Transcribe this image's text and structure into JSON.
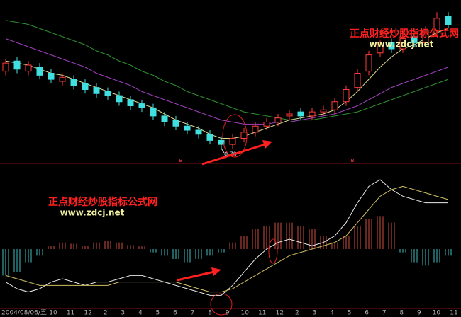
{
  "chart_data": [
    {
      "type": "candlestick",
      "open": [
        1.17,
        1.22,
        1.17,
        1.19,
        1.16,
        1.12,
        1.13,
        1.11,
        1.09,
        1.07,
        1.05,
        1.03,
        1.01,
        0.99,
        0.95,
        0.93,
        0.9,
        0.88,
        0.86,
        0.83,
        0.81,
        0.84,
        0.87,
        0.9,
        0.92,
        0.95,
        0.97,
        0.95,
        0.97,
        0.98,
        1.02,
        1.09,
        1.17,
        1.26,
        1.31,
        1.28,
        1.34,
        1.31,
        1.37,
        1.44
      ],
      "high": [
        1.23,
        1.24,
        1.22,
        1.21,
        1.18,
        1.16,
        1.15,
        1.13,
        1.11,
        1.09,
        1.07,
        1.05,
        1.03,
        1.01,
        0.97,
        0.95,
        0.92,
        0.9,
        0.88,
        0.85,
        0.86,
        0.89,
        0.92,
        0.94,
        0.96,
        0.98,
        0.99,
        0.99,
        1.0,
        1.04,
        1.1,
        1.18,
        1.27,
        1.32,
        1.33,
        1.35,
        1.36,
        1.39,
        1.46,
        1.46
      ],
      "low": [
        1.15,
        1.16,
        1.15,
        1.13,
        1.11,
        1.1,
        1.08,
        1.06,
        1.04,
        1.03,
        1.0,
        0.98,
        0.97,
        0.93,
        0.9,
        0.88,
        0.86,
        0.84,
        0.81,
        0.79,
        0.79,
        0.82,
        0.85,
        0.88,
        0.9,
        0.93,
        0.93,
        0.93,
        0.95,
        0.96,
        1.0,
        1.07,
        1.15,
        1.24,
        1.26,
        1.26,
        1.29,
        1.29,
        1.35,
        1.38
      ],
      "close": [
        1.21,
        1.18,
        1.2,
        1.15,
        1.13,
        1.14,
        1.1,
        1.08,
        1.06,
        1.05,
        1.02,
        1.0,
        0.99,
        0.95,
        0.92,
        0.9,
        0.88,
        0.86,
        0.83,
        0.81,
        0.84,
        0.87,
        0.9,
        0.92,
        0.94,
        0.96,
        0.95,
        0.97,
        0.98,
        1.02,
        1.08,
        1.16,
        1.25,
        1.3,
        1.28,
        1.33,
        1.31,
        1.37,
        1.43,
        1.4
      ],
      "up_color": "#ff3c3c",
      "down_color": "#40e0e0",
      "series": [
        {
          "color": "#d8d890",
          "values": [
            1.22,
            1.21,
            1.2,
            1.18,
            1.16,
            1.15,
            1.13,
            1.11,
            1.09,
            1.07,
            1.05,
            1.03,
            1.01,
            0.99,
            0.96,
            0.93,
            0.91,
            0.89,
            0.86,
            0.84,
            0.84,
            0.85,
            0.87,
            0.89,
            0.91,
            0.93,
            0.94,
            0.95,
            0.96,
            0.98,
            1.02,
            1.07,
            1.13,
            1.19,
            1.24,
            1.28,
            1.3,
            1.33,
            1.36,
            1.38
          ]
        },
        {
          "color": "#a040c0",
          "values": [
            1.33,
            1.31,
            1.29,
            1.27,
            1.25,
            1.23,
            1.21,
            1.19,
            1.16,
            1.14,
            1.12,
            1.1,
            1.07,
            1.05,
            1.03,
            1.01,
            0.99,
            0.97,
            0.95,
            0.93,
            0.92,
            0.91,
            0.91,
            0.91,
            0.92,
            0.92,
            0.93,
            0.94,
            0.95,
            0.96,
            0.98,
            1.0,
            1.03,
            1.06,
            1.09,
            1.11,
            1.13,
            1.15,
            1.17,
            1.19
          ]
        },
        {
          "color": "#309030",
          "values": [
            1.42,
            1.41,
            1.4,
            1.38,
            1.36,
            1.34,
            1.32,
            1.3,
            1.27,
            1.25,
            1.22,
            1.2,
            1.17,
            1.15,
            1.12,
            1.1,
            1.07,
            1.05,
            1.03,
            1.01,
            0.99,
            0.97,
            0.96,
            0.95,
            0.94,
            0.93,
            0.93,
            0.93,
            0.94,
            0.95,
            0.96,
            0.97,
            0.99,
            1.01,
            1.03,
            1.05,
            1.07,
            1.09,
            1.11,
            1.13
          ]
        }
      ],
      "buy_markers": [
        "B",
        "B"
      ],
      "ylim": [
        0.72,
        1.52
      ]
    },
    {
      "type": "macd",
      "histogram": [
        -0.04,
        -0.035,
        -0.02,
        -0.01,
        0.005,
        0.01,
        0.008,
        0.005,
        0.01,
        0.012,
        0.01,
        0.006,
        0.004,
        -0.005,
        -0.01,
        -0.015,
        -0.02,
        -0.015,
        -0.01,
        -0.005,
        0.01,
        0.02,
        0.03,
        0.035,
        0.04,
        0.04,
        0.035,
        0.03,
        0.02,
        0.01,
        0.02,
        0.035,
        0.045,
        0.05,
        0.04,
        -0.005,
        -0.02,
        -0.025,
        -0.02,
        -0.01
      ],
      "up_color": "#d05040",
      "down_color": "#40c0c0",
      "series": [
        {
          "color": "#e8e8e8",
          "values": [
            -0.05,
            -0.06,
            -0.065,
            -0.06,
            -0.05,
            -0.045,
            -0.05,
            -0.055,
            -0.05,
            -0.05,
            -0.045,
            -0.04,
            -0.04,
            -0.045,
            -0.05,
            -0.055,
            -0.06,
            -0.065,
            -0.07,
            -0.07,
            -0.055,
            -0.035,
            -0.015,
            0.0,
            0.01,
            0.015,
            0.01,
            0.005,
            0.01,
            0.02,
            0.04,
            0.07,
            0.095,
            0.105,
            0.09,
            0.08,
            0.075,
            0.07,
            0.07,
            0.07
          ]
        },
        {
          "color": "#d0c060",
          "values": [
            -0.04,
            -0.045,
            -0.05,
            -0.055,
            -0.055,
            -0.055,
            -0.055,
            -0.055,
            -0.055,
            -0.055,
            -0.05,
            -0.05,
            -0.05,
            -0.05,
            -0.05,
            -0.05,
            -0.055,
            -0.06,
            -0.065,
            -0.065,
            -0.06,
            -0.05,
            -0.04,
            -0.03,
            -0.02,
            -0.01,
            -0.005,
            0.0,
            0.005,
            0.01,
            0.02,
            0.04,
            0.06,
            0.08,
            0.09,
            0.095,
            0.09,
            0.085,
            0.08,
            0.075
          ]
        }
      ],
      "ylim": [
        -0.09,
        0.12
      ],
      "x_labels": [
        "2004/08/06/五",
        "10",
        "11",
        "12",
        "2",
        "3",
        "4",
        "5",
        "6",
        "7",
        "8",
        "9",
        "10",
        "11",
        "12",
        "2",
        "3",
        "4",
        "5",
        "6",
        "7",
        "8",
        "9",
        "10",
        "11"
      ]
    }
  ],
  "watermark": {
    "title": "正点财经炒股指标公式网",
    "url": "www.zdcj.net"
  }
}
